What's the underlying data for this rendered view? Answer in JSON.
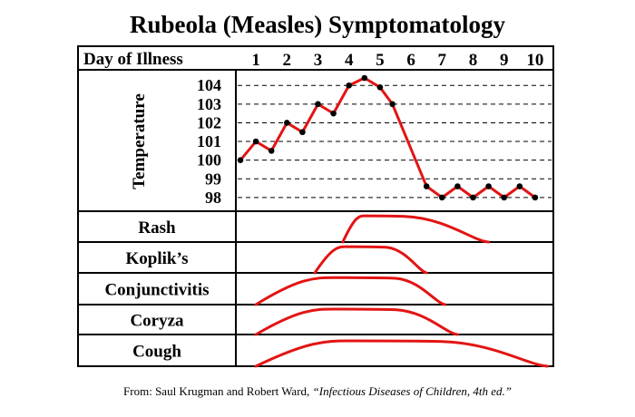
{
  "title": "Rubeola (Measles) Symptomatology",
  "source": {
    "prefix": "From: Saul Krugman and  Robert Ward, ",
    "reference": "“Infectious Diseases of Children, 4th ed.”"
  },
  "colors": {
    "curve": "#e31414",
    "ink": "#000000",
    "background": "#ffffff"
  },
  "chart_data": {
    "type": "line",
    "title": "Rubeola (Measles) Symptomatology",
    "xlabel": "Day of Illness",
    "x_ticks": [
      "1",
      "2",
      "3",
      "4",
      "5",
      "6",
      "7",
      "8",
      "9",
      "10"
    ],
    "xlim": [
      0.5,
      10.5
    ],
    "temperature": {
      "ylabel": "Temperature",
      "y_ticks": [
        "104",
        "103",
        "102",
        "101",
        "100",
        "99",
        "98"
      ],
      "ylim": [
        97.8,
        104.4
      ],
      "grid": "dashed",
      "points": [
        [
          0.5,
          100.0
        ],
        [
          1.0,
          101.0
        ],
        [
          1.5,
          100.5
        ],
        [
          2.0,
          102.0
        ],
        [
          2.5,
          101.5
        ],
        [
          3.0,
          103.0
        ],
        [
          3.5,
          102.5
        ],
        [
          4.0,
          104.0
        ],
        [
          4.5,
          104.4
        ],
        [
          5.0,
          103.9
        ],
        [
          5.4,
          103.0
        ],
        [
          6.5,
          98.6
        ],
        [
          7.0,
          98.0
        ],
        [
          7.5,
          98.6
        ],
        [
          8.0,
          98.0
        ],
        [
          8.5,
          98.6
        ],
        [
          9.0,
          98.0
        ],
        [
          9.5,
          98.6
        ],
        [
          10.0,
          98.0
        ]
      ]
    },
    "symptoms": [
      {
        "name": "Rash",
        "start": 3.8,
        "plateau_start": 4.5,
        "plateau_end": 5.8,
        "end": 8.5,
        "start_level": 0.0,
        "level": 0.85,
        "end_level": 0.0
      },
      {
        "name": "Koplik’s",
        "start": 2.9,
        "plateau_start": 3.9,
        "plateau_end": 5.2,
        "end": 6.5,
        "start_level": 0.0,
        "level": 0.85,
        "end_level": 0.0
      },
      {
        "name": "Conjunctivitis",
        "start": 1.0,
        "plateau_start": 3.5,
        "plateau_end": 5.5,
        "end": 7.1,
        "start_level": 0.0,
        "level": 0.85,
        "end_level": 0.0
      },
      {
        "name": "Coryza",
        "start": 1.0,
        "plateau_start": 3.5,
        "plateau_end": 5.5,
        "end": 7.5,
        "start_level": 0.0,
        "level": 0.85,
        "end_level": 0.0
      },
      {
        "name": "Cough",
        "start": 1.0,
        "plateau_start": 4.0,
        "plateau_end": 7.0,
        "end": 10.4,
        "start_level": 0.0,
        "level": 0.8,
        "end_level": 0.0
      }
    ]
  }
}
